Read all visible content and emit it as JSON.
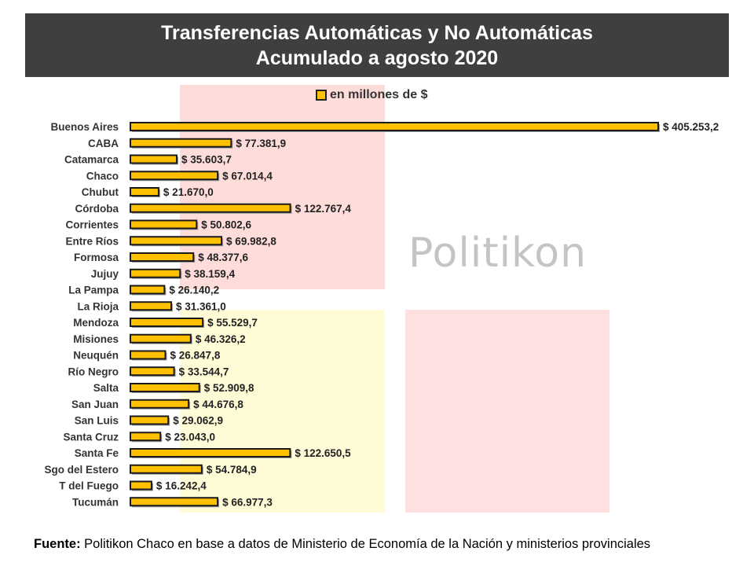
{
  "header": {
    "title_line1": "Transferencias Automáticas y No Automáticas",
    "title_line2": "Acumulado a agosto 2020"
  },
  "legend": {
    "label": "en millones de $"
  },
  "watermark": {
    "text": "Politikon"
  },
  "source": {
    "label": "Fuente:",
    "text": " Politikon Chaco en base a datos de Ministerio de Economía de la Nación y ministerios provinciales"
  },
  "colors": {
    "bar_fill": "#ffc000",
    "bar_border": "#1a1a1a",
    "banner": "#3f3f3f"
  },
  "chart_data": {
    "type": "bar",
    "orientation": "horizontal",
    "title": "Transferencias Automáticas y No Automáticas",
    "subtitle": "Acumulado a agosto 2020",
    "categories": [
      "Buenos Aires",
      "CABA",
      "Catamarca",
      "Chaco",
      "Chubut",
      "Córdoba",
      "Corrientes",
      "Entre Ríos",
      "Formosa",
      "Jujuy",
      "La Pampa",
      "La Rioja",
      "Mendoza",
      "Misiones",
      "Neuquén",
      "Río Negro",
      "Salta",
      "San Juan",
      "San Luis",
      "Santa Cruz",
      "Santa Fe",
      "Sgo del Estero",
      "T del Fuego",
      "Tucumán"
    ],
    "series": [
      {
        "name": "en millones de $",
        "values": [
          405253.2,
          77381.9,
          35603.7,
          67014.4,
          21670.0,
          122767.4,
          50802.6,
          69982.8,
          48377.6,
          38159.4,
          26140.2,
          31361.0,
          55529.7,
          46326.2,
          26847.8,
          33544.7,
          52909.8,
          44676.8,
          29062.9,
          23043.0,
          122650.5,
          54784.9,
          16242.4,
          66977.3
        ],
        "labels": [
          "$ 405.253,2",
          "$ 77.381,9",
          "$ 35.603,7",
          "$ 67.014,4",
          "$ 21.670,0",
          "$ 122.767,4",
          "$ 50.802,6",
          "$ 69.982,8",
          "$ 48.377,6",
          "$ 38.159,4",
          "$ 26.140,2",
          "$ 31.361,0",
          "$ 55.529,7",
          "$ 46.326,2",
          "$ 26.847,8",
          "$ 33.544,7",
          "$ 52.909,8",
          "$ 44.676,8",
          "$ 29.062,9",
          "$ 23.043,0",
          "$ 122.650,5",
          "$ 54.784,9",
          "$ 16.242,4",
          "$ 66.977,3"
        ]
      }
    ],
    "xlim": [
      0,
      405253.2
    ],
    "grid": false,
    "legend_position": "top"
  }
}
